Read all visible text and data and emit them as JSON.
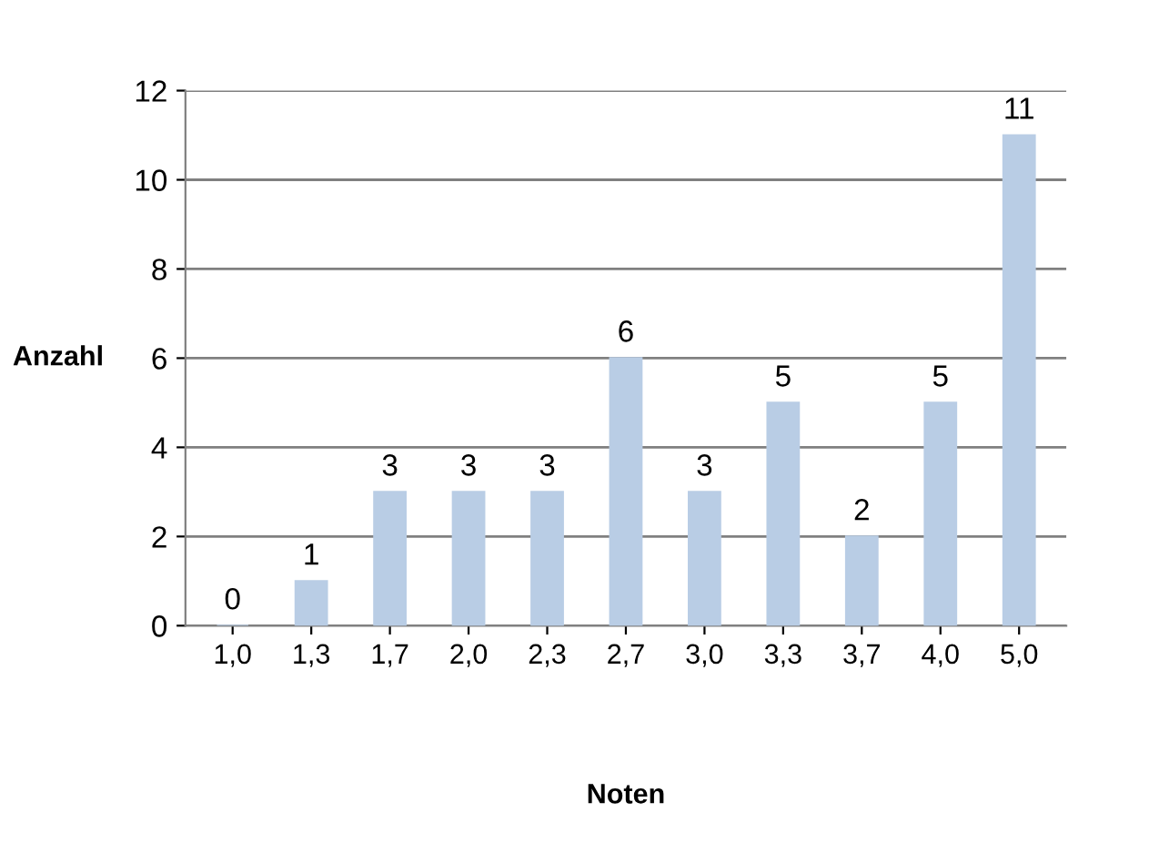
{
  "chart_data": {
    "type": "bar",
    "xlabel": "Noten",
    "ylabel": "Anzahl",
    "categories": [
      "1,0",
      "1,3",
      "1,7",
      "2,0",
      "2,3",
      "2,7",
      "3,0",
      "3,3",
      "3,7",
      "4,0",
      "5,0"
    ],
    "values": [
      0,
      1,
      3,
      3,
      3,
      6,
      3,
      5,
      2,
      5,
      11
    ],
    "color": "#b9cde5",
    "ylim": [
      0,
      12
    ],
    "yticks": [
      0,
      2,
      4,
      6,
      8,
      10,
      12
    ],
    "grid": "y",
    "data_labels": true
  }
}
